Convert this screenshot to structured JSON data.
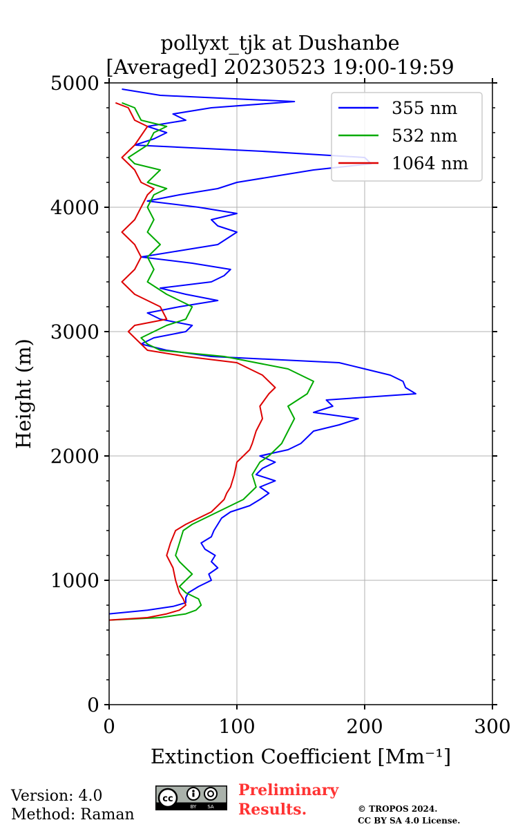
{
  "chart_data": {
    "type": "line",
    "title": "pollyxt_tjk at Dushanbe",
    "subtitle": "[Averaged] 20230523 19:00-19:59",
    "xlabel": "Extinction Coefficient [Mm⁻¹]",
    "ylabel": "Height (m)",
    "xlim": [
      0,
      300
    ],
    "ylim": [
      0,
      5000
    ],
    "xticks": [
      0,
      100,
      200,
      300
    ],
    "yticks": [
      0,
      1000,
      2000,
      3000,
      4000,
      5000
    ],
    "grid": true,
    "legend_position": "top-right",
    "series": [
      {
        "name": "355 nm",
        "color": "#0000ff",
        "points": [
          [
            0,
            730
          ],
          [
            30,
            760
          ],
          [
            50,
            790
          ],
          [
            60,
            820
          ],
          [
            60,
            860
          ],
          [
            62,
            900
          ],
          [
            70,
            950
          ],
          [
            80,
            1000
          ],
          [
            78,
            1050
          ],
          [
            85,
            1100
          ],
          [
            80,
            1150
          ],
          [
            83,
            1200
          ],
          [
            75,
            1250
          ],
          [
            72,
            1300
          ],
          [
            80,
            1350
          ],
          [
            82,
            1400
          ],
          [
            85,
            1450
          ],
          [
            88,
            1500
          ],
          [
            95,
            1550
          ],
          [
            110,
            1600
          ],
          [
            118,
            1650
          ],
          [
            125,
            1700
          ],
          [
            118,
            1750
          ],
          [
            130,
            1800
          ],
          [
            115,
            1850
          ],
          [
            120,
            1900
          ],
          [
            130,
            1950
          ],
          [
            118,
            2000
          ],
          [
            140,
            2050
          ],
          [
            150,
            2100
          ],
          [
            155,
            2150
          ],
          [
            160,
            2200
          ],
          [
            180,
            2250
          ],
          [
            195,
            2300
          ],
          [
            160,
            2350
          ],
          [
            175,
            2400
          ],
          [
            170,
            2450
          ],
          [
            240,
            2500
          ],
          [
            232,
            2550
          ],
          [
            230,
            2600
          ],
          [
            220,
            2650
          ],
          [
            200,
            2700
          ],
          [
            180,
            2750
          ],
          [
            80,
            2800
          ],
          [
            45,
            2850
          ],
          [
            25,
            2900
          ],
          [
            35,
            2950
          ],
          [
            60,
            3000
          ],
          [
            65,
            3050
          ],
          [
            40,
            3100
          ],
          [
            30,
            3150
          ],
          [
            55,
            3200
          ],
          [
            85,
            3250
          ],
          [
            60,
            3300
          ],
          [
            40,
            3350
          ],
          [
            80,
            3400
          ],
          [
            90,
            3450
          ],
          [
            95,
            3500
          ],
          [
            65,
            3550
          ],
          [
            25,
            3600
          ],
          [
            55,
            3650
          ],
          [
            85,
            3700
          ],
          [
            100,
            3800
          ],
          [
            85,
            3850
          ],
          [
            80,
            3900
          ],
          [
            100,
            3950
          ],
          [
            70,
            4000
          ],
          [
            30,
            4050
          ],
          [
            55,
            4100
          ],
          [
            85,
            4150
          ],
          [
            100,
            4200
          ],
          [
            130,
            4250
          ],
          [
            160,
            4300
          ],
          [
            205,
            4350
          ],
          [
            200,
            4400
          ],
          [
            120,
            4450
          ],
          [
            20,
            4500
          ],
          [
            35,
            4550
          ],
          [
            45,
            4600
          ],
          [
            30,
            4650
          ],
          [
            60,
            4700
          ],
          [
            50,
            4750
          ],
          [
            80,
            4800
          ],
          [
            145,
            4850
          ],
          [
            40,
            4900
          ],
          [
            10,
            4950
          ]
        ]
      },
      {
        "name": "532 nm",
        "color": "#00aa00",
        "points": [
          [
            0,
            680
          ],
          [
            40,
            700
          ],
          [
            60,
            730
          ],
          [
            68,
            760
          ],
          [
            72,
            800
          ],
          [
            70,
            850
          ],
          [
            60,
            900
          ],
          [
            55,
            950
          ],
          [
            60,
            1000
          ],
          [
            65,
            1050
          ],
          [
            60,
            1100
          ],
          [
            55,
            1150
          ],
          [
            52,
            1200
          ],
          [
            55,
            1300
          ],
          [
            58,
            1400
          ],
          [
            65,
            1450
          ],
          [
            75,
            1500
          ],
          [
            85,
            1550
          ],
          [
            95,
            1600
          ],
          [
            105,
            1650
          ],
          [
            110,
            1700
          ],
          [
            115,
            1750
          ],
          [
            112,
            1850
          ],
          [
            118,
            1950
          ],
          [
            125,
            2000
          ],
          [
            130,
            2050
          ],
          [
            135,
            2100
          ],
          [
            140,
            2200
          ],
          [
            145,
            2300
          ],
          [
            140,
            2400
          ],
          [
            155,
            2500
          ],
          [
            160,
            2600
          ],
          [
            140,
            2700
          ],
          [
            90,
            2800
          ],
          [
            40,
            2850
          ],
          [
            30,
            2900
          ],
          [
            25,
            2950
          ],
          [
            35,
            3000
          ],
          [
            45,
            3050
          ],
          [
            60,
            3100
          ],
          [
            65,
            3200
          ],
          [
            45,
            3300
          ],
          [
            30,
            3400
          ],
          [
            35,
            3500
          ],
          [
            30,
            3600
          ],
          [
            40,
            3700
          ],
          [
            30,
            3800
          ],
          [
            35,
            3900
          ],
          [
            30,
            4000
          ],
          [
            35,
            4100
          ],
          [
            45,
            4150
          ],
          [
            30,
            4200
          ],
          [
            40,
            4300
          ],
          [
            20,
            4350
          ],
          [
            15,
            4400
          ],
          [
            30,
            4500
          ],
          [
            35,
            4600
          ],
          [
            45,
            4650
          ],
          [
            25,
            4700
          ],
          [
            20,
            4800
          ],
          [
            10,
            4840
          ]
        ]
      },
      {
        "name": "1064 nm",
        "color": "#dd0000",
        "points": [
          [
            0,
            680
          ],
          [
            30,
            700
          ],
          [
            45,
            730
          ],
          [
            55,
            760
          ],
          [
            60,
            800
          ],
          [
            58,
            850
          ],
          [
            55,
            900
          ],
          [
            52,
            1000
          ],
          [
            50,
            1100
          ],
          [
            45,
            1200
          ],
          [
            48,
            1300
          ],
          [
            52,
            1400
          ],
          [
            60,
            1450
          ],
          [
            70,
            1500
          ],
          [
            80,
            1550
          ],
          [
            85,
            1600
          ],
          [
            90,
            1650
          ],
          [
            92,
            1700
          ],
          [
            95,
            1750
          ],
          [
            98,
            1850
          ],
          [
            100,
            1950
          ],
          [
            105,
            2000
          ],
          [
            110,
            2050
          ],
          [
            112,
            2100
          ],
          [
            115,
            2200
          ],
          [
            120,
            2300
          ],
          [
            118,
            2400
          ],
          [
            125,
            2500
          ],
          [
            130,
            2550
          ],
          [
            120,
            2650
          ],
          [
            100,
            2750
          ],
          [
            60,
            2800
          ],
          [
            30,
            2850
          ],
          [
            25,
            2900
          ],
          [
            20,
            2950
          ],
          [
            15,
            3000
          ],
          [
            20,
            3050
          ],
          [
            45,
            3100
          ],
          [
            40,
            3200
          ],
          [
            20,
            3300
          ],
          [
            10,
            3400
          ],
          [
            20,
            3500
          ],
          [
            25,
            3600
          ],
          [
            20,
            3700
          ],
          [
            10,
            3800
          ],
          [
            20,
            3900
          ],
          [
            25,
            4000
          ],
          [
            30,
            4100
          ],
          [
            35,
            4150
          ],
          [
            25,
            4200
          ],
          [
            20,
            4300
          ],
          [
            15,
            4350
          ],
          [
            10,
            4400
          ],
          [
            20,
            4500
          ],
          [
            30,
            4650
          ],
          [
            20,
            4700
          ],
          [
            15,
            4800
          ],
          [
            5,
            4840
          ]
        ]
      }
    ]
  },
  "footer": {
    "version": "Version: 4.0",
    "method": "Method: Raman",
    "preliminary_line1": "Preliminary",
    "preliminary_line2": "Results.",
    "copyright_line1": "© TROPOS 2024.",
    "copyright_line2": "CC BY SA 4.0 License.",
    "badge_cc": "cc",
    "badge_by": "BY",
    "badge_sa": "SA"
  }
}
